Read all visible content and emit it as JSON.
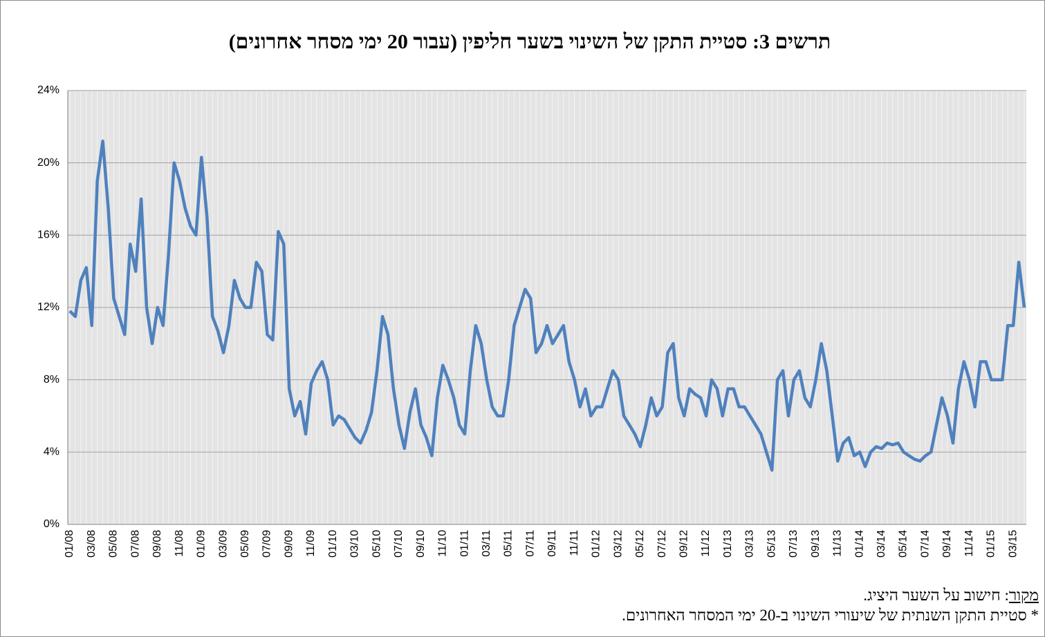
{
  "chart_data": {
    "type": "line",
    "title": "תרשים 3: סטיית התקן של השינוי בשער חליפין (עבור 20 ימי מסחר אחרונים)",
    "source_label": "מקור",
    "source_text": ": חישוב על השער היציג.",
    "footnote": "* סטיית התקן השנתית של שיעורי השינוי ב-20 ימי המסחר האחרונים.",
    "color": "#4f81bd",
    "grid": true,
    "ylim": [
      0,
      24
    ],
    "yticks": [
      {
        "value": 0,
        "label": "0%"
      },
      {
        "value": 4,
        "label": "4%"
      },
      {
        "value": 8,
        "label": "8%"
      },
      {
        "value": 12,
        "label": "12%"
      },
      {
        "value": 16,
        "label": "16%"
      },
      {
        "value": 20,
        "label": "20%"
      },
      {
        "value": 24,
        "label": "24%"
      }
    ],
    "categories": [
      "01/08",
      null,
      null,
      null,
      "03/08",
      null,
      null,
      null,
      "05/08",
      null,
      null,
      null,
      "07/08",
      null,
      null,
      null,
      "09/08",
      null,
      null,
      null,
      "11/08",
      null,
      null,
      null,
      "01/09",
      null,
      null,
      null,
      "03/09",
      null,
      null,
      null,
      "05/09",
      null,
      null,
      null,
      "07/09",
      null,
      null,
      null,
      "09/09",
      null,
      null,
      null,
      "11/09",
      null,
      null,
      null,
      "01/10",
      null,
      null,
      null,
      "03/10",
      null,
      null,
      null,
      "05/10",
      null,
      null,
      null,
      "07/10",
      null,
      null,
      null,
      "09/10",
      null,
      null,
      null,
      "11/10",
      null,
      null,
      null,
      "01/11",
      null,
      null,
      null,
      "03/11",
      null,
      null,
      null,
      "05/11",
      null,
      null,
      null,
      "07/11",
      null,
      null,
      null,
      "09/11",
      null,
      null,
      null,
      "11/11",
      null,
      null,
      null,
      "01/12",
      null,
      null,
      null,
      "03/12",
      null,
      null,
      null,
      "05/12",
      null,
      null,
      null,
      "07/12",
      null,
      null,
      null,
      "09/12",
      null,
      null,
      null,
      "11/12",
      null,
      null,
      null,
      "01/13",
      null,
      null,
      null,
      "03/13",
      null,
      null,
      null,
      "05/13",
      null,
      null,
      null,
      "07/13",
      null,
      null,
      null,
      "09/13",
      null,
      null,
      null,
      "11/13",
      null,
      null,
      null,
      "01/14",
      null,
      null,
      null,
      "03/14",
      null,
      null,
      null,
      "05/14",
      null,
      null,
      null,
      "07/14",
      null,
      null,
      null,
      "09/14",
      null,
      null,
      null,
      "11/14",
      null,
      null,
      null,
      "01/15",
      null,
      null,
      null,
      "03/15",
      null,
      null
    ],
    "values": [
      11.8,
      11.5,
      13.5,
      14.2,
      11.0,
      19,
      21.2,
      17.5,
      12.5,
      11.5,
      10.5,
      15.5,
      14,
      18,
      12,
      10,
      12,
      11,
      15,
      20,
      19,
      17.5,
      16.5,
      16,
      20.3,
      17,
      11.5,
      10.7,
      9.5,
      11,
      13.5,
      12.5,
      12,
      12,
      14.5,
      14,
      10.5,
      10.2,
      16.2,
      15.5,
      7.5,
      6.0,
      6.8,
      5.0,
      7.8,
      8.5,
      9.0,
      8.0,
      5.5,
      6.0,
      5.8,
      5.3,
      4.8,
      4.5,
      5.2,
      6.2,
      8.5,
      11.5,
      10.5,
      7.5,
      5.5,
      4.2,
      6.2,
      7.5,
      5.5,
      4.8,
      3.8,
      7.0,
      8.8,
      8.0,
      7.0,
      5.5,
      5.0,
      8.5,
      11.0,
      10.0,
      8.0,
      6.5,
      6.0,
      6.0,
      8.0,
      11.0,
      12.0,
      13.0,
      12.5,
      9.5,
      10.0,
      11.0,
      10.0,
      10.5,
      11.0,
      9.0,
      8.0,
      6.5,
      7.5,
      6.0,
      6.5,
      6.5,
      7.5,
      8.5,
      8.0,
      6.0,
      5.5,
      5.0,
      4.3,
      5.5,
      7.0,
      6.0,
      6.5,
      9.5,
      10.0,
      7.0,
      6.0,
      7.5,
      7.2,
      7.0,
      6.0,
      8.0,
      7.5,
      6.0,
      7.5,
      7.5,
      6.5,
      6.5,
      6.0,
      5.5,
      5.0,
      4.0,
      3.0,
      8.0,
      8.5,
      6.0,
      8.0,
      8.5,
      7.0,
      6.5,
      8.0,
      10.0,
      8.5,
      6.0,
      3.5,
      4.5,
      4.8,
      3.8,
      4.0,
      3.2,
      4.0,
      4.3,
      4.2,
      4.5,
      4.4,
      4.5,
      4.0,
      3.8,
      3.6,
      3.5,
      3.8,
      4.0,
      5.5,
      7.0,
      6.0,
      4.5,
      7.5,
      9.0,
      8.0,
      6.5,
      9.0,
      9.0,
      8.0,
      8.0,
      8.0,
      11.0,
      11.0,
      14.5,
      12.0
    ]
  }
}
